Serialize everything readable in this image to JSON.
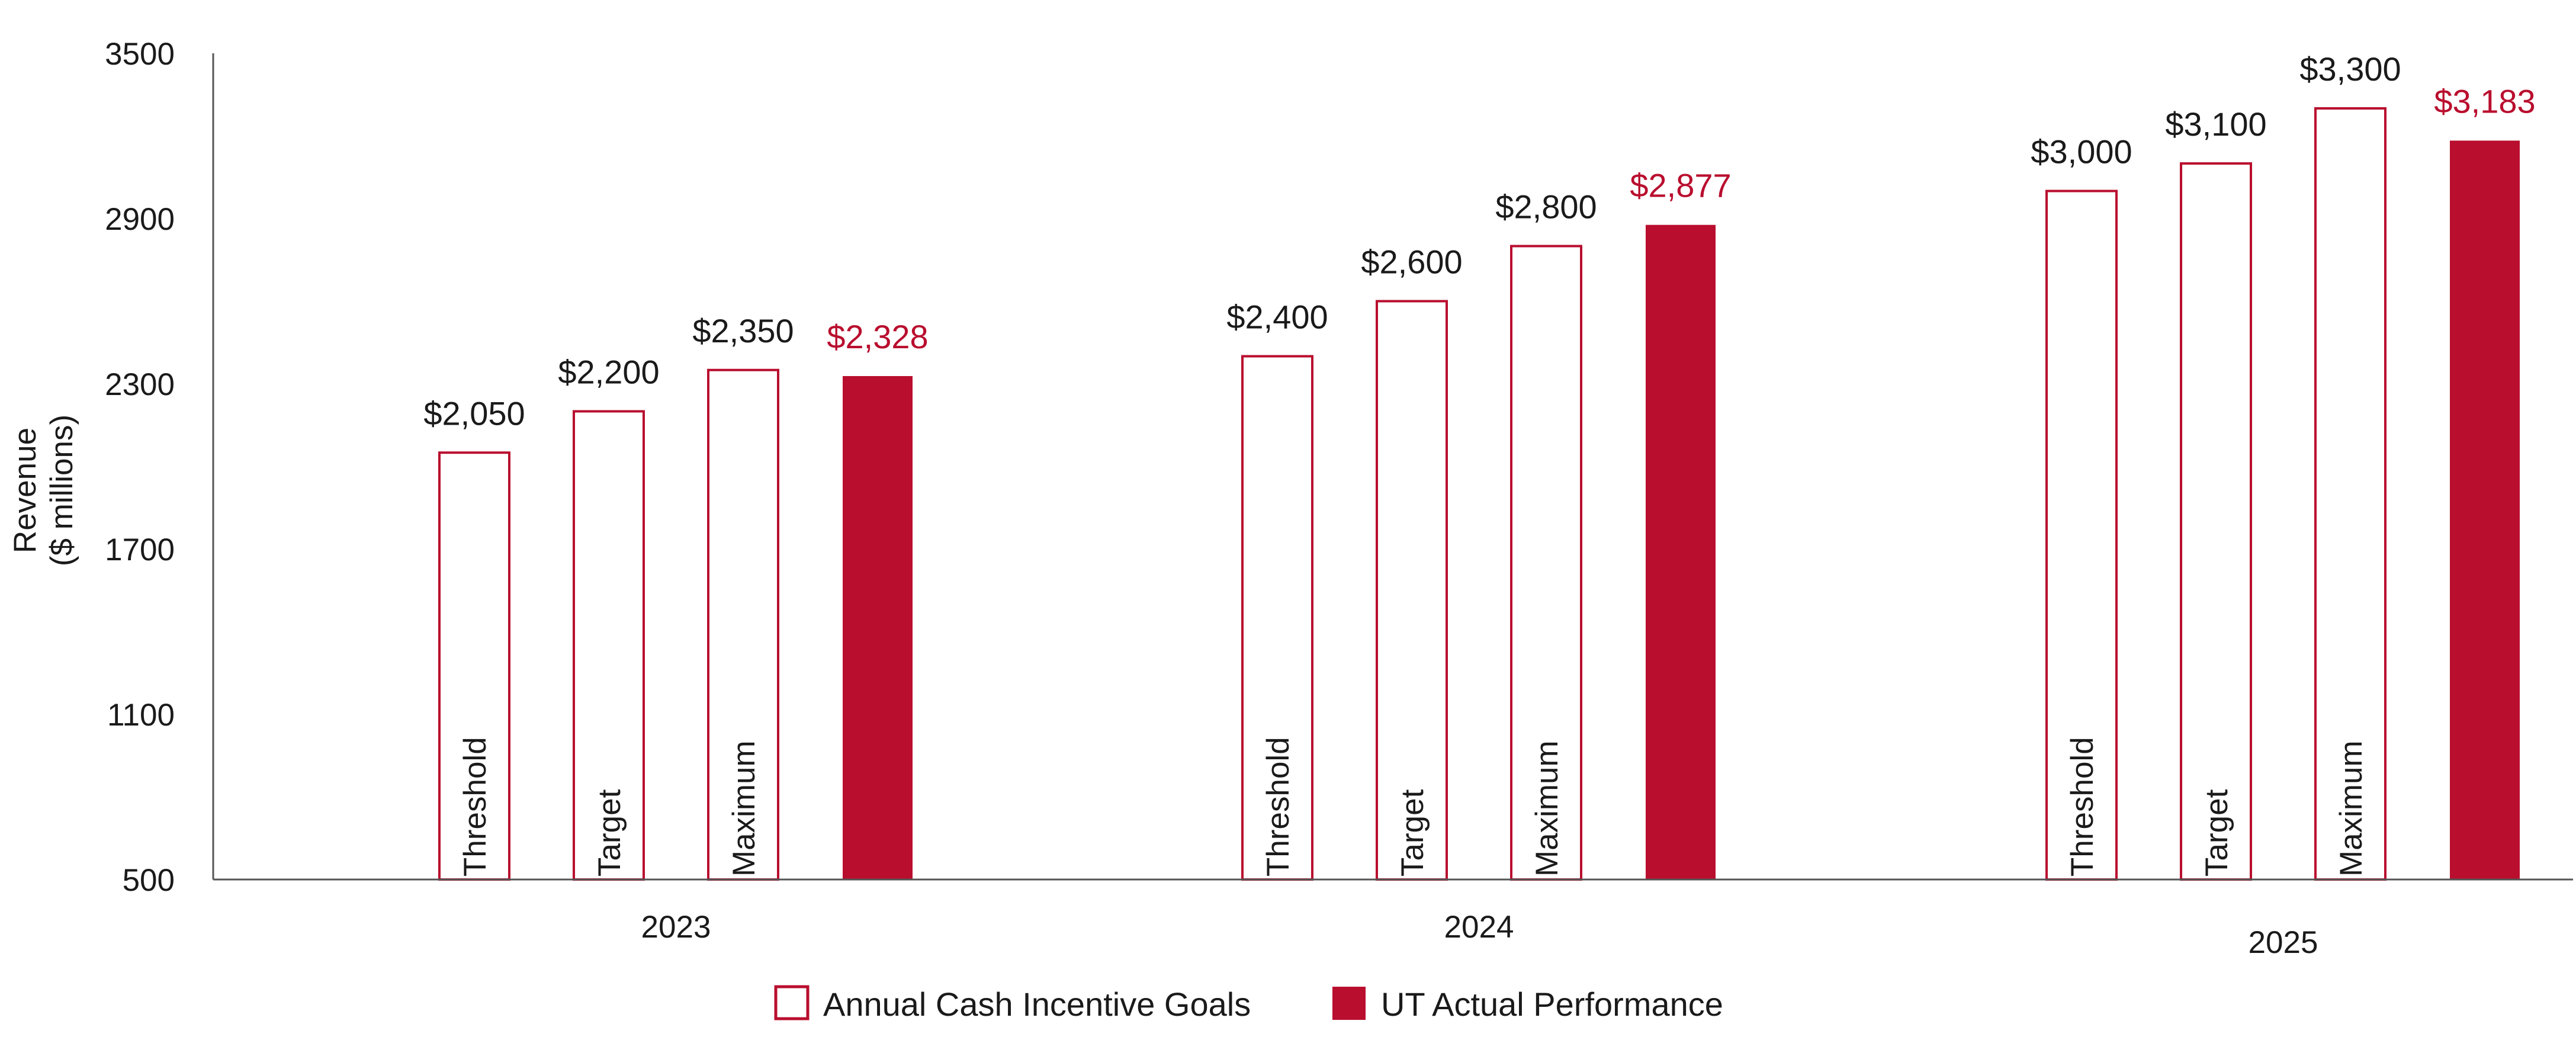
{
  "chart_data": {
    "type": "bar",
    "ylabel": [
      "Revenue",
      "($ millions)"
    ],
    "ylim": [
      500,
      3500
    ],
    "yticks": [
      500,
      1100,
      1700,
      2300,
      2900,
      3500
    ],
    "categories": [
      "2023",
      "2024",
      "2025"
    ],
    "bar_labels": [
      "Threshold",
      "Target",
      "Maximum"
    ],
    "series": [
      {
        "name": "Annual Cash Incentive Goals",
        "style": "outline",
        "groups": [
          [
            2050,
            2200,
            2350
          ],
          [
            2400,
            2600,
            2800
          ],
          [
            3000,
            3100,
            3300
          ]
        ],
        "labels": [
          [
            "$2,050",
            "$2,200",
            "$2,350"
          ],
          [
            "$2,400",
            "$2,600",
            "$2,800"
          ],
          [
            "$3,000",
            "$3,100",
            "$3,300"
          ]
        ]
      },
      {
        "name": "UT Actual Performance",
        "style": "filled",
        "values": [
          2328,
          2877,
          3183
        ],
        "labels": [
          "$2,328",
          "$2,877",
          "$3,183"
        ]
      }
    ],
    "colors": {
      "accent": "#b90e2e",
      "axis": "#555555",
      "text": "#1a1a1a"
    },
    "grid": false,
    "legend_position": "bottom-center"
  }
}
